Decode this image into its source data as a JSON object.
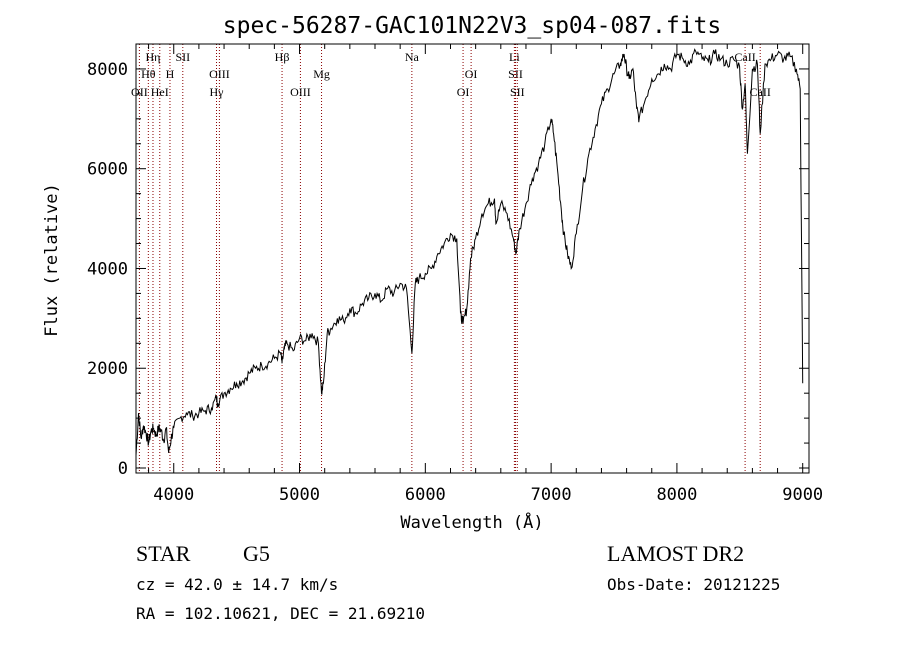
{
  "chart_data": {
    "type": "line",
    "title": "spec-56287-GAC101N22V3_sp04-087.fits",
    "xlabel": "Wavelength (Å)",
    "ylabel": "Flux (relative)",
    "xlim": [
      3700,
      9050
    ],
    "ylim": [
      -100,
      8500
    ],
    "xticks": [
      4000,
      5000,
      6000,
      7000,
      8000,
      9000
    ],
    "yticks": [
      0,
      2000,
      4000,
      6000,
      8000
    ],
    "grid": false,
    "line_color": "#000000",
    "marker_color": "#8b0000",
    "spectrum": {
      "x": [
        3700,
        3720,
        3740,
        3760,
        3780,
        3800,
        3820,
        3840,
        3860,
        3880,
        3900,
        3920,
        3940,
        3960,
        3980,
        4000,
        4050,
        4100,
        4150,
        4200,
        4250,
        4300,
        4340,
        4350,
        4400,
        4450,
        4500,
        4550,
        4600,
        4650,
        4700,
        4750,
        4800,
        4850,
        4861,
        4880,
        4900,
        4950,
        5000,
        5050,
        5100,
        5150,
        5175,
        5190,
        5220,
        5250,
        5300,
        5350,
        5400,
        5450,
        5500,
        5550,
        5600,
        5650,
        5700,
        5750,
        5800,
        5850,
        5893,
        5920,
        5950,
        6000,
        6050,
        6100,
        6150,
        6200,
        6250,
        6280,
        6300,
        6330,
        6360,
        6400,
        6450,
        6500,
        6550,
        6563,
        6600,
        6650,
        6700,
        6720,
        6750,
        6800,
        6850,
        6900,
        6950,
        7000,
        7020,
        7050,
        7080,
        7100,
        7130,
        7160,
        7200,
        7250,
        7300,
        7350,
        7400,
        7450,
        7500,
        7550,
        7580,
        7600,
        7620,
        7650,
        7680,
        7700,
        7750,
        7800,
        7850,
        7900,
        7950,
        8000,
        8050,
        8100,
        8150,
        8200,
        8250,
        8300,
        8350,
        8400,
        8450,
        8498,
        8520,
        8542,
        8560,
        8600,
        8640,
        8662,
        8700,
        8750,
        8800,
        8850,
        8900,
        8950,
        8980,
        9000
      ],
      "y": [
        250,
        1100,
        600,
        850,
        700,
        500,
        750,
        800,
        650,
        800,
        750,
        550,
        800,
        300,
        600,
        800,
        1000,
        1100,
        1050,
        1100,
        1150,
        1200,
        1400,
        1300,
        1500,
        1600,
        1700,
        1750,
        1900,
        2000,
        2050,
        2100,
        2200,
        2300,
        2100,
        2400,
        2500,
        2350,
        2600,
        2550,
        2700,
        2500,
        1500,
        1700,
        2700,
        2800,
        3000,
        2950,
        3200,
        3100,
        3300,
        3400,
        3500,
        3350,
        3600,
        3500,
        3700,
        3600,
        2300,
        3700,
        3800,
        3900,
        4000,
        4300,
        4500,
        4700,
        4600,
        3100,
        2900,
        3200,
        4200,
        4600,
        5100,
        5300,
        5400,
        4900,
        5300,
        5100,
        4600,
        4300,
        4800,
        5300,
        5800,
        6100,
        6500,
        7000,
        6700,
        6000,
        5200,
        4700,
        4300,
        4000,
        4700,
        5600,
        6300,
        6800,
        7300,
        7600,
        7900,
        8100,
        8300,
        8000,
        7800,
        8000,
        7200,
        7000,
        7400,
        7800,
        7900,
        8100,
        8000,
        8300,
        8200,
        8100,
        8350,
        8200,
        8150,
        8300,
        8200,
        8100,
        8200,
        8050,
        7200,
        7700,
        6300,
        8000,
        8100,
        6700,
        8100,
        8200,
        8300,
        8200,
        8250,
        8000,
        7600,
        1700
      ]
    },
    "lines": [
      {
        "wave": 3727,
        "label": "OII",
        "row": 3
      },
      {
        "wave": 3798,
        "label": "Hθ",
        "row": 2
      },
      {
        "wave": 3835,
        "label": "Hη",
        "row": 1
      },
      {
        "wave": 3889,
        "label": "HeI",
        "row": 3
      },
      {
        "wave": 3970,
        "label": "H",
        "row": 2
      },
      {
        "wave": 4072,
        "label": "SII",
        "row": 1
      },
      {
        "wave": 4340,
        "label": "Hγ",
        "row": 3
      },
      {
        "wave": 4363,
        "label": "OIII",
        "row": 2
      },
      {
        "wave": 4861,
        "label": "Hβ",
        "row": 1
      },
      {
        "wave": 5007,
        "label": "OIII",
        "row": 3
      },
      {
        "wave": 5175,
        "label": "Mg",
        "row": 2
      },
      {
        "wave": 5893,
        "label": "Na",
        "row": 1
      },
      {
        "wave": 6300,
        "label": "OI",
        "row": 3
      },
      {
        "wave": 6364,
        "label": "OI",
        "row": 2
      },
      {
        "wave": 6708,
        "label": "Li",
        "row": 1
      },
      {
        "wave": 6717,
        "label": "SII",
        "row": 2
      },
      {
        "wave": 6731,
        "label": "SII",
        "row": 3
      },
      {
        "wave": 8542,
        "label": "CaII",
        "row": 1
      },
      {
        "wave": 8662,
        "label": "CaII",
        "row": 3
      }
    ]
  },
  "footer": {
    "class_label": "STAR",
    "subclass": "G5",
    "survey": "LAMOST DR2",
    "cz": "cz = 42.0 ± 14.7 km/s",
    "obs_date": "Obs-Date: 20121225",
    "coords": "RA = 102.10621, DEC =  21.69210"
  }
}
